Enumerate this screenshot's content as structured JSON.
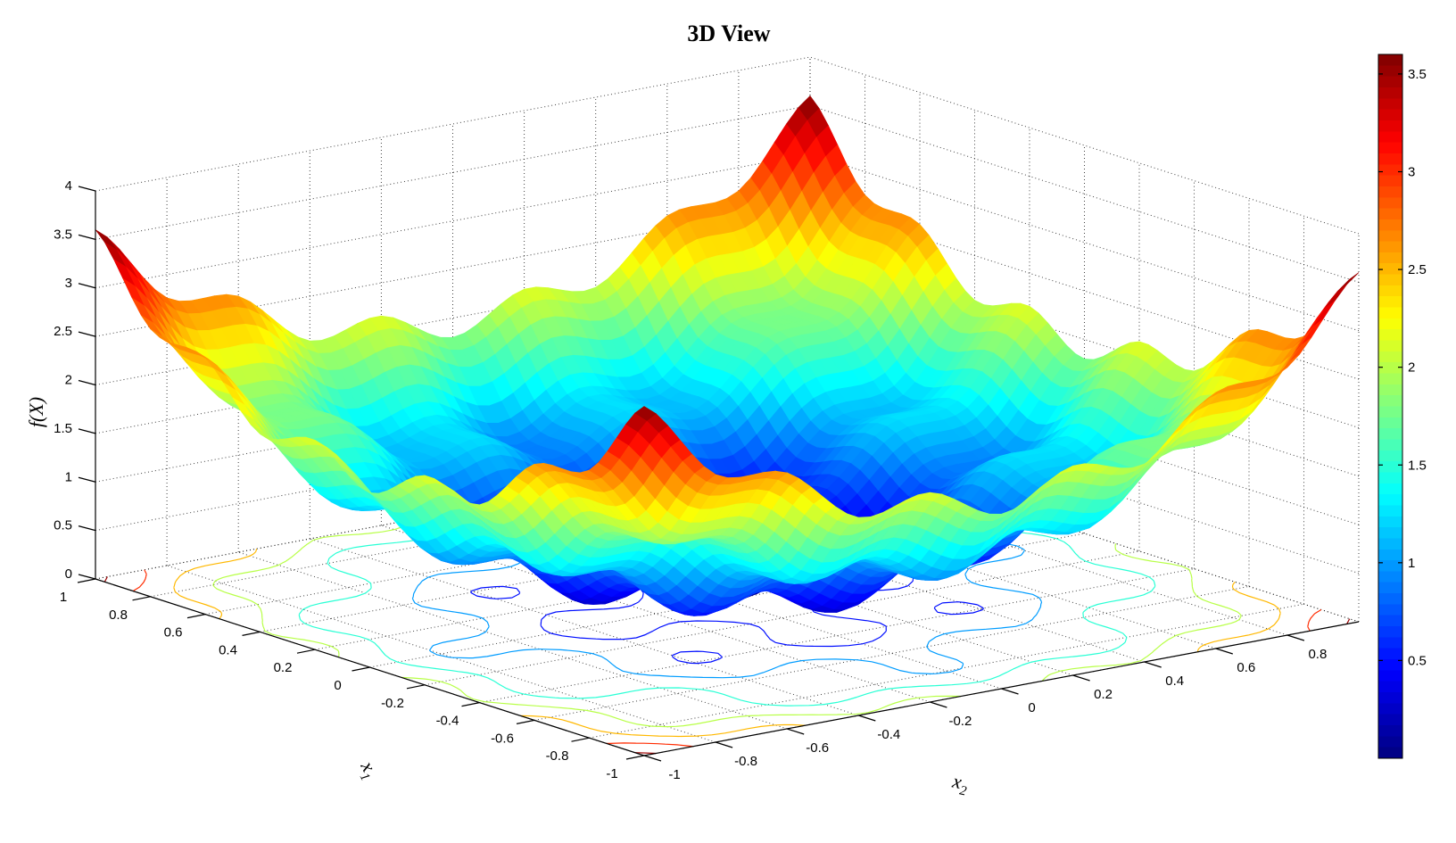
{
  "chart_data": {
    "type": "surface",
    "title": "3D View",
    "xlabel": {
      "base": "x",
      "sub": "1"
    },
    "ylabel": {
      "base": "x",
      "sub": "2"
    },
    "zlabel": "f(X)",
    "xlim": [
      -1,
      1
    ],
    "ylim": [
      -1,
      1
    ],
    "zlim": [
      0,
      4
    ],
    "grid": true,
    "contours_on_floor": true,
    "x1": [
      -1,
      -0.8,
      -0.6,
      -0.4,
      -0.2,
      0,
      0.2,
      0.4,
      0.6,
      0.8,
      1
    ],
    "x2": [
      -1,
      -0.8,
      -0.6,
      -0.4,
      -0.2,
      0,
      0.2,
      0.4,
      0.6,
      0.8,
      1
    ],
    "z": [
      [
        3.6,
        2.76,
        2.64,
        2.04,
        2.16,
        1.8,
        2.16,
        2.04,
        2.64,
        2.76,
        3.6
      ],
      [
        2.76,
        1.92,
        1.8,
        1.2,
        1.32,
        0.96,
        1.32,
        1.2,
        1.8,
        1.92,
        2.76
      ],
      [
        2.64,
        1.8,
        1.68,
        1.08,
        1.2,
        0.84,
        1.2,
        1.08,
        1.68,
        1.8,
        2.64
      ],
      [
        2.04,
        1.2,
        1.08,
        0.48,
        0.6,
        0.24,
        0.6,
        0.48,
        1.08,
        1.2,
        2.04
      ],
      [
        2.16,
        1.32,
        1.2,
        0.6,
        0.72,
        0.36,
        0.72,
        0.6,
        1.2,
        1.32,
        2.16
      ],
      [
        1.8,
        0.96,
        0.84,
        0.24,
        0.36,
        0,
        0.36,
        0.24,
        0.84,
        0.96,
        1.8
      ],
      [
        2.16,
        1.32,
        1.2,
        0.6,
        0.72,
        0.36,
        0.72,
        0.6,
        1.2,
        1.32,
        2.16
      ],
      [
        2.04,
        1.2,
        1.08,
        0.48,
        0.6,
        0.24,
        0.6,
        0.48,
        1.08,
        1.2,
        2.04
      ],
      [
        2.64,
        1.8,
        1.68,
        1.08,
        1.2,
        0.84,
        1.2,
        1.08,
        1.68,
        1.8,
        2.64
      ],
      [
        2.76,
        1.92,
        1.8,
        1.2,
        1.32,
        0.96,
        1.32,
        1.2,
        1.8,
        1.92,
        2.76
      ],
      [
        3.6,
        2.76,
        2.64,
        2.04,
        2.16,
        1.8,
        2.16,
        2.04,
        2.64,
        2.76,
        3.6
      ]
    ],
    "x1_ticks": [
      "-1",
      "-0.8",
      "-0.6",
      "-0.4",
      "-0.2",
      "0",
      "0.2",
      "0.4",
      "0.6",
      "0.8",
      "1"
    ],
    "x2_ticks": [
      "-1",
      "-0.8",
      "-0.6",
      "-0.4",
      "-0.2",
      "0",
      "0.2",
      "0.4",
      "0.6",
      "0.8"
    ],
    "z_ticks": [
      "0",
      "0.5",
      "1",
      "1.5",
      "2",
      "2.5",
      "3",
      "3.5",
      "4"
    ],
    "colorbar": {
      "colormap": "jet",
      "range": [
        0,
        3.6
      ],
      "ticks": [
        "0.5",
        "1",
        "1.5",
        "2",
        "2.5",
        "3",
        "3.5"
      ]
    }
  }
}
